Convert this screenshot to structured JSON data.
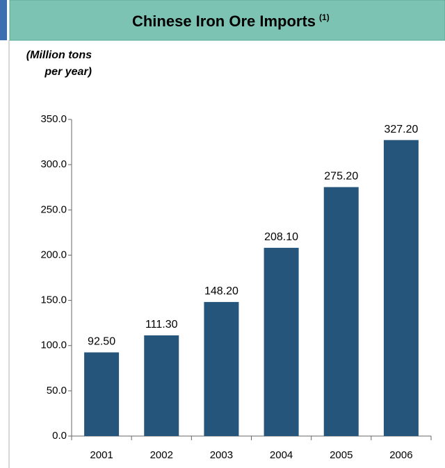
{
  "chart_data": {
    "type": "bar",
    "title": "Chinese Iron Ore Imports",
    "title_note": "(1)",
    "y_label": "(Million tons per year)",
    "categories": [
      "2001",
      "2002",
      "2003",
      "2004",
      "2005",
      "2006"
    ],
    "values": [
      92.5,
      111.3,
      148.2,
      208.1,
      275.2,
      327.2
    ],
    "value_labels": [
      "92.50",
      "111.30",
      "148.20",
      "208.10",
      "275.20",
      "327.20"
    ],
    "color": "#26557b",
    "ylim": [
      0,
      350
    ],
    "yticks": [
      {
        "value": 0,
        "label": "0.0"
      },
      {
        "value": 50,
        "label": "50.0"
      },
      {
        "value": 100,
        "label": "100.0"
      },
      {
        "value": 150,
        "label": "150.0"
      },
      {
        "value": 200,
        "label": "200.0"
      },
      {
        "value": 250,
        "label": "250.0"
      },
      {
        "value": 300,
        "label": "300.0"
      },
      {
        "value": 350,
        "label": "350.0"
      }
    ],
    "grid": false
  }
}
